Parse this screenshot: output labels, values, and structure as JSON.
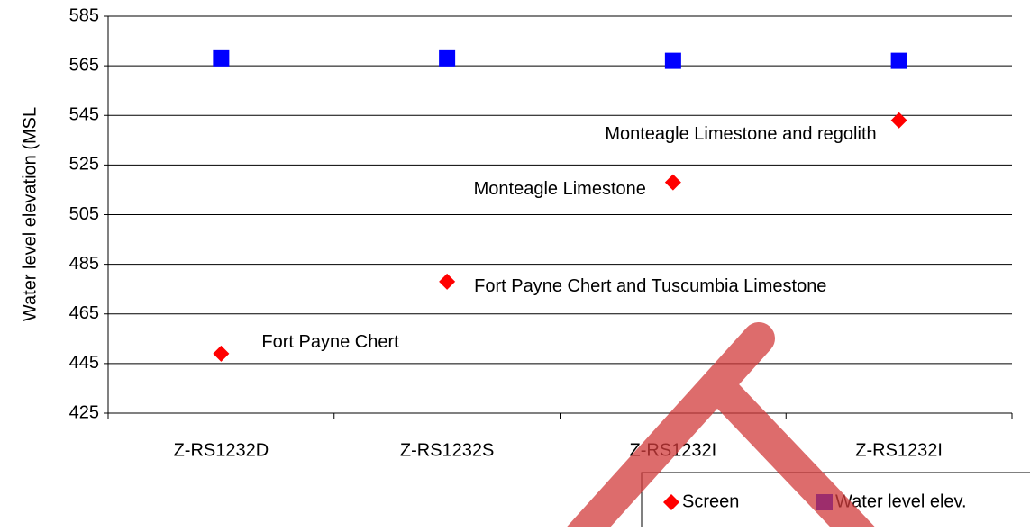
{
  "chart_data": {
    "type": "scatter",
    "y_label": "Water level elevation (MSL",
    "categories": [
      "Z-RS1232D",
      "Z-RS1232S",
      "Z-RS1232I",
      "Z-RS1232I"
    ],
    "series": [
      {
        "name": "Screen",
        "color": "#ff0000",
        "marker": "diamond",
        "values": [
          449,
          478,
          518,
          543
        ]
      },
      {
        "name": "Water level elev.",
        "color": "#0000ff",
        "marker": "square",
        "values": [
          568,
          568,
          567,
          567
        ]
      }
    ],
    "annotations": [
      "Fort Payne Chert",
      "Fort Payne Chert and Tuscumbia Limestone",
      "Monteagle Limestone",
      "Monteagle Limestone and regolith"
    ],
    "ylim": [
      425,
      585
    ],
    "yticks": [
      425,
      445,
      465,
      485,
      505,
      525,
      545,
      565,
      585
    ],
    "grid": true
  }
}
